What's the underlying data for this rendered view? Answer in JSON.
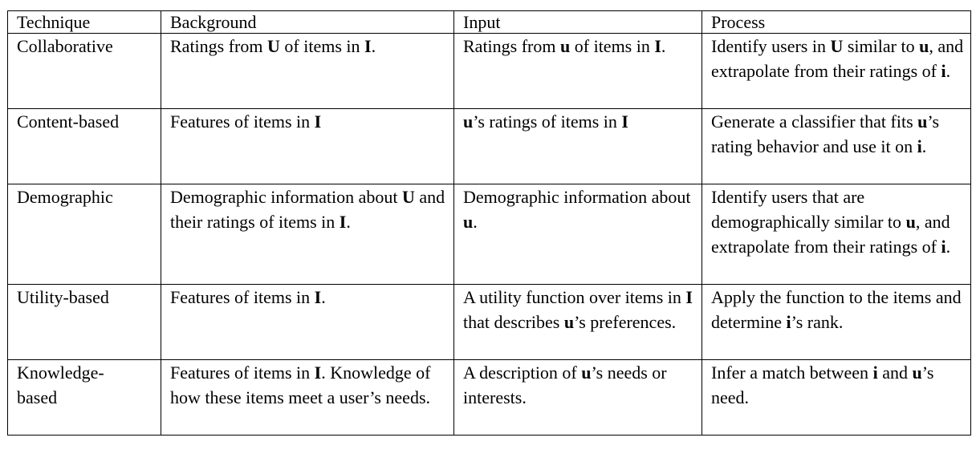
{
  "table": {
    "headers": [
      "Technique",
      "Background",
      "Input",
      "Process"
    ],
    "rows": [
      {
        "technique": "Collaborative",
        "background": [
          {
            "t": "Ratings from "
          },
          {
            "t": "U",
            "b": true
          },
          {
            "t": " of items in "
          },
          {
            "t": "I",
            "b": true
          },
          {
            "t": "."
          }
        ],
        "input": [
          {
            "t": "Ratings from "
          },
          {
            "t": "u",
            "b": true
          },
          {
            "t": " of items in "
          },
          {
            "t": "I",
            "b": true
          },
          {
            "t": "."
          }
        ],
        "process": [
          {
            "t": "Identify users in "
          },
          {
            "t": "U",
            "b": true
          },
          {
            "t": " similar to "
          },
          {
            "t": "u",
            "b": true
          },
          {
            "t": ", and extrapolate from their ratings of "
          },
          {
            "t": "i",
            "b": true
          },
          {
            "t": "."
          }
        ]
      },
      {
        "technique": "Content-based",
        "background": [
          {
            "t": "Features of items in "
          },
          {
            "t": "I",
            "b": true
          }
        ],
        "input": [
          {
            "t": "u",
            "b": true
          },
          {
            "t": "’s ratings of items in "
          },
          {
            "t": "I",
            "b": true
          }
        ],
        "process": [
          {
            "t": "Generate a classifier that fits "
          },
          {
            "t": "u",
            "b": true
          },
          {
            "t": "’s rating behavior and use it on "
          },
          {
            "t": "i",
            "b": true
          },
          {
            "t": "."
          }
        ]
      },
      {
        "technique": "Demographic",
        "background": [
          {
            "t": "Demographic information about "
          },
          {
            "t": "U",
            "b": true
          },
          {
            "t": " and their ratings of items in "
          },
          {
            "t": "I",
            "b": true
          },
          {
            "t": "."
          }
        ],
        "input": [
          {
            "t": "Demographic information about "
          },
          {
            "t": "u",
            "b": true
          },
          {
            "t": "."
          }
        ],
        "process": [
          {
            "t": "Identify users that are demographically similar to "
          },
          {
            "t": "u",
            "b": true
          },
          {
            "t": ", and extrapolate from their ratings of "
          },
          {
            "t": "i",
            "b": true
          },
          {
            "t": "."
          }
        ]
      },
      {
        "technique": "Utility-based",
        "background": [
          {
            "t": "Features of items in "
          },
          {
            "t": "I",
            "b": true
          },
          {
            "t": "."
          }
        ],
        "input": [
          {
            "t": "A utility function over items in "
          },
          {
            "t": "I",
            "b": true
          },
          {
            "t": " that describes "
          },
          {
            "t": "u",
            "b": true
          },
          {
            "t": "’s preferences."
          }
        ],
        "process": [
          {
            "t": "Apply the function to the items and determine "
          },
          {
            "t": "i",
            "b": true
          },
          {
            "t": "’s rank."
          }
        ]
      },
      {
        "technique": "Knowledge-based",
        "background": [
          {
            "t": "Features of items in "
          },
          {
            "t": "I",
            "b": true
          },
          {
            "t": ". Knowledge of how these items meet a user’s needs."
          }
        ],
        "input": [
          {
            "t": "A description of "
          },
          {
            "t": "u",
            "b": true
          },
          {
            "t": "’s needs or interests."
          }
        ],
        "process": [
          {
            "t": "Infer a match between "
          },
          {
            "t": "i",
            "b": true
          },
          {
            "t": " and "
          },
          {
            "t": "u",
            "b": true
          },
          {
            "t": "’s need."
          }
        ]
      }
    ]
  }
}
